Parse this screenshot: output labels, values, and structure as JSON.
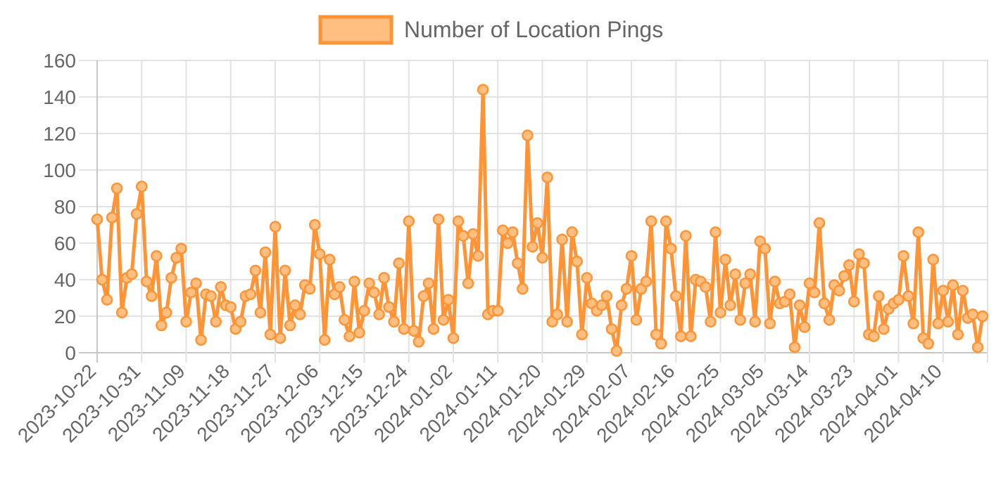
{
  "chart_data": {
    "type": "line",
    "title": "",
    "xlabel": "",
    "ylabel": "",
    "ylim": [
      0,
      160
    ],
    "y_ticks": [
      0,
      20,
      40,
      60,
      80,
      100,
      120,
      140,
      160
    ],
    "x_tick_labels": [
      "2023-10-22",
      "2023-10-31",
      "2023-11-09",
      "2023-11-18",
      "2023-11-27",
      "2023-12-06",
      "2023-12-15",
      "2023-12-24",
      "2024-01-02",
      "2024-01-11",
      "2024-01-20",
      "2024-01-29",
      "2024-02-07",
      "2024-02-16",
      "2024-02-25",
      "2024-03-05",
      "2024-03-14",
      "2024-03-23",
      "2024-04-01",
      "2024-04-10"
    ],
    "x_start": "2023-10-22",
    "x_end": "2024-04-19",
    "grid": true,
    "legend_position": "top-center",
    "series": [
      {
        "name": "Number of Location Pings",
        "line_color": "#ff9436",
        "fill_color": "#ffbf80",
        "values": [
          73,
          40,
          29,
          74,
          90,
          22,
          41,
          43,
          76,
          91,
          39,
          31,
          53,
          15,
          22,
          41,
          52,
          57,
          17,
          33,
          38,
          7,
          32,
          31,
          17,
          36,
          26,
          25,
          13,
          17,
          31,
          32,
          45,
          22,
          55,
          10,
          69,
          8,
          45,
          15,
          26,
          21,
          37,
          35,
          70,
          54,
          7,
          51,
          32,
          36,
          18,
          9,
          39,
          11,
          23,
          38,
          33,
          21,
          41,
          25,
          17,
          49,
          13,
          72,
          12,
          6,
          31,
          38,
          13,
          73,
          18,
          29,
          8,
          72,
          64,
          38,
          65,
          53,
          144,
          21,
          23,
          23,
          67,
          60,
          66,
          49,
          35,
          119,
          58,
          71,
          52,
          96,
          17,
          21,
          62,
          17,
          66,
          50,
          10,
          41,
          27,
          23,
          26,
          31,
          13,
          1,
          26,
          35,
          53,
          18,
          35,
          39,
          72,
          10,
          5,
          72,
          57,
          31,
          9,
          64,
          9,
          40,
          39,
          36,
          17,
          66,
          22,
          51,
          26,
          43,
          18,
          38,
          43,
          17,
          61,
          57,
          16,
          39,
          27,
          28,
          32,
          3,
          26,
          14,
          38,
          33,
          71,
          27,
          18,
          37,
          34,
          42,
          48,
          28,
          54,
          49,
          10,
          9,
          31,
          13,
          24,
          27,
          29,
          53,
          31,
          16,
          66,
          8,
          5,
          51,
          16,
          34,
          17,
          37,
          10,
          34,
          19,
          21,
          3,
          20
        ]
      }
    ]
  }
}
